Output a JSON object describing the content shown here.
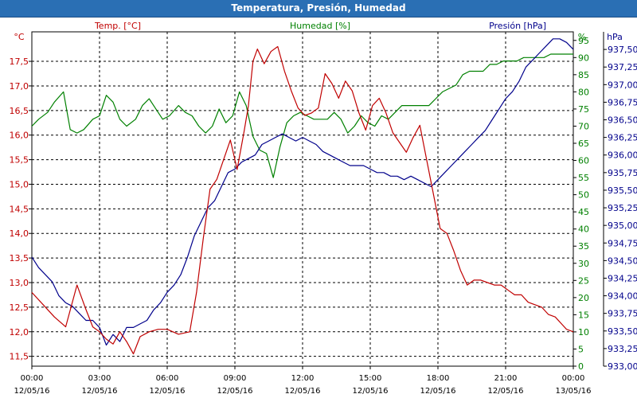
{
  "window": {
    "title": "Temperatura, Presión, Humedad"
  },
  "chart_data": {
    "type": "line",
    "title": "Temperatura, Presión, Humedad",
    "xlabel": "",
    "x_ticks": [
      {
        "time": "00:00",
        "date": "12/05/16"
      },
      {
        "time": "03:00",
        "date": "12/05/16"
      },
      {
        "time": "06:00",
        "date": "12/05/16"
      },
      {
        "time": "09:00",
        "date": "12/05/16"
      },
      {
        "time": "12:00",
        "date": "12/05/16"
      },
      {
        "time": "15:00",
        "date": "12/05/16"
      },
      {
        "time": "18:00",
        "date": "12/05/16"
      },
      {
        "time": "21:00",
        "date": "12/05/16"
      },
      {
        "time": "00:00",
        "date": "13/05/16"
      }
    ],
    "xlim_hours": [
      0,
      24
    ],
    "grid": true,
    "legend_position": "top",
    "axes": {
      "temp": {
        "unit_label": "°C",
        "ylim": [
          11.3,
          18.1
        ],
        "ticks": [
          "11,5",
          "12,0",
          "12,5",
          "13,0",
          "13,5",
          "14,0",
          "14,5",
          "15,0",
          "15,5",
          "16,0",
          "16,5",
          "17,0",
          "17,5"
        ],
        "color": "#c00000"
      },
      "hum": {
        "unit_label": "%",
        "ylim": [
          0,
          97.5
        ],
        "ticks": [
          "0",
          "5",
          "10",
          "15",
          "20",
          "25",
          "30",
          "35",
          "40",
          "45",
          "50",
          "55",
          "60",
          "65",
          "70",
          "75",
          "80",
          "85",
          "90",
          "95"
        ],
        "color": "#008000"
      },
      "pres": {
        "unit_label": "hPa",
        "ylim": [
          933.0,
          937.75
        ],
        "ticks": [
          "933,00",
          "933,25",
          "933,50",
          "933,75",
          "934,00",
          "934,25",
          "934,50",
          "934,75",
          "935,00",
          "935,25",
          "935,50",
          "935,75",
          "936,00",
          "936,25",
          "936,50",
          "936,75",
          "937,00",
          "937,25",
          "937,50"
        ],
        "color": "#00008b"
      }
    },
    "series": [
      {
        "name": "Temp. [°C]",
        "axis": "temp",
        "color": "#c00000",
        "x": [
          0,
          0.5,
          1,
          1.5,
          2,
          2.4,
          2.7,
          3,
          3.3,
          3.6,
          3.9,
          4.2,
          4.5,
          4.8,
          5.2,
          5.6,
          6,
          6.5,
          7,
          7.3,
          7.6,
          7.9,
          8.2,
          8.5,
          8.8,
          9.1,
          9.4,
          9.6,
          9.8,
          10,
          10.3,
          10.6,
          10.9,
          11.2,
          11.5,
          11.8,
          12.1,
          12.4,
          12.7,
          13,
          13.3,
          13.6,
          13.9,
          14.2,
          14.5,
          14.8,
          15.1,
          15.4,
          15.7,
          16,
          16.3,
          16.6,
          16.9,
          17.2,
          17.5,
          17.8,
          18.1,
          18.4,
          18.7,
          19,
          19.3,
          19.6,
          19.9,
          20.2,
          20.5,
          20.8,
          21.1,
          21.4,
          21.7,
          22,
          22.3,
          22.6,
          22.9,
          23.2,
          23.5,
          23.7,
          24
        ],
        "y": [
          12.8,
          12.55,
          12.3,
          12.1,
          12.95,
          12.45,
          12.1,
          12.0,
          11.85,
          11.75,
          12.0,
          11.8,
          11.55,
          11.9,
          12.0,
          12.05,
          12.05,
          11.95,
          12.0,
          12.8,
          13.9,
          14.9,
          15.1,
          15.5,
          15.9,
          15.3,
          16.05,
          16.6,
          17.5,
          17.75,
          17.45,
          17.7,
          17.8,
          17.3,
          16.9,
          16.55,
          16.4,
          16.45,
          16.55,
          17.25,
          17.05,
          16.75,
          17.1,
          16.9,
          16.45,
          16.1,
          16.6,
          16.75,
          16.45,
          16.05,
          15.85,
          15.65,
          15.95,
          16.2,
          15.5,
          14.8,
          14.1,
          14.0,
          13.65,
          13.25,
          12.95,
          13.05,
          13.05,
          13.0,
          12.95,
          12.95,
          12.85,
          12.75,
          12.75,
          12.6,
          12.55,
          12.5,
          12.35,
          12.3,
          12.15,
          12.05,
          12.0
        ]
      },
      {
        "name": "Humedad [%]",
        "axis": "hum",
        "color": "#008000",
        "x": [
          0,
          0.3,
          0.7,
          1,
          1.4,
          1.7,
          2,
          2.3,
          2.7,
          3,
          3.3,
          3.6,
          3.9,
          4.2,
          4.6,
          4.9,
          5.2,
          5.5,
          5.8,
          6.1,
          6.5,
          6.8,
          7.1,
          7.4,
          7.7,
          8,
          8.3,
          8.6,
          8.9,
          9.2,
          9.5,
          9.8,
          10.1,
          10.4,
          10.7,
          11,
          11.3,
          11.6,
          11.9,
          12.2,
          12.5,
          12.8,
          13.1,
          13.4,
          13.7,
          14,
          14.3,
          14.6,
          14.9,
          15.2,
          15.5,
          15.8,
          16.1,
          16.4,
          16.7,
          17,
          17.3,
          17.6,
          17.9,
          18.2,
          18.5,
          18.8,
          19.1,
          19.4,
          19.7,
          20,
          20.3,
          20.6,
          20.9,
          21.2,
          21.5,
          21.8,
          22.1,
          22.4,
          22.7,
          23,
          23.3,
          23.6,
          24
        ],
        "y": [
          70,
          72,
          74,
          77,
          80,
          69,
          68,
          69,
          72,
          73,
          79,
          77,
          72,
          70,
          72,
          76,
          78,
          75,
          72,
          73,
          76,
          74,
          73,
          70,
          68,
          70,
          75,
          71,
          73,
          80,
          76,
          67,
          63,
          62,
          55,
          64,
          71,
          73,
          74,
          73,
          72,
          72,
          72,
          74,
          72,
          68,
          70,
          73,
          71,
          70,
          73,
          72,
          74,
          76,
          76,
          76,
          76,
          76,
          78,
          80,
          81,
          82,
          85,
          86,
          86,
          86,
          88,
          88,
          89,
          89,
          89,
          90,
          90,
          90,
          90,
          91,
          91,
          91,
          91
        ]
      },
      {
        "name": "Presión [hPa]",
        "axis": "pres",
        "color": "#00008b",
        "x": [
          0,
          0.3,
          0.6,
          0.9,
          1.2,
          1.5,
          1.8,
          2.1,
          2.4,
          2.7,
          3,
          3.3,
          3.6,
          3.9,
          4.2,
          4.5,
          4.8,
          5.1,
          5.4,
          5.7,
          6,
          6.3,
          6.6,
          6.9,
          7.2,
          7.5,
          7.8,
          8.1,
          8.4,
          8.7,
          9,
          9.3,
          9.6,
          9.9,
          10.2,
          10.5,
          10.8,
          11.1,
          11.4,
          11.7,
          12,
          12.3,
          12.6,
          12.9,
          13.2,
          13.5,
          13.8,
          14.1,
          14.4,
          14.7,
          15,
          15.3,
          15.6,
          15.9,
          16.2,
          16.5,
          16.8,
          17.1,
          17.4,
          17.7,
          18,
          18.3,
          18.6,
          18.9,
          19.2,
          19.5,
          19.8,
          20.1,
          20.4,
          20.7,
          21,
          21.3,
          21.6,
          21.9,
          22.2,
          22.5,
          22.8,
          23.1,
          23.4,
          23.7,
          24
        ],
        "y": [
          934.55,
          934.4,
          934.3,
          934.2,
          934.0,
          933.9,
          933.85,
          933.75,
          933.65,
          933.65,
          933.55,
          933.3,
          933.45,
          933.35,
          933.55,
          933.55,
          933.6,
          933.65,
          933.8,
          933.9,
          934.05,
          934.15,
          934.3,
          934.55,
          934.85,
          935.05,
          935.25,
          935.35,
          935.55,
          935.75,
          935.8,
          935.9,
          935.95,
          936.0,
          936.15,
          936.2,
          936.25,
          936.3,
          936.25,
          936.2,
          936.25,
          936.2,
          936.15,
          936.05,
          936.0,
          935.95,
          935.9,
          935.85,
          935.85,
          935.85,
          935.8,
          935.75,
          935.75,
          935.7,
          935.7,
          935.65,
          935.7,
          935.65,
          935.6,
          935.55,
          935.65,
          935.75,
          935.85,
          935.95,
          936.05,
          936.15,
          936.25,
          936.35,
          936.5,
          936.65,
          936.8,
          936.9,
          937.05,
          937.25,
          937.35,
          937.45,
          937.55,
          937.65,
          937.65,
          937.6,
          937.5
        ]
      }
    ]
  }
}
